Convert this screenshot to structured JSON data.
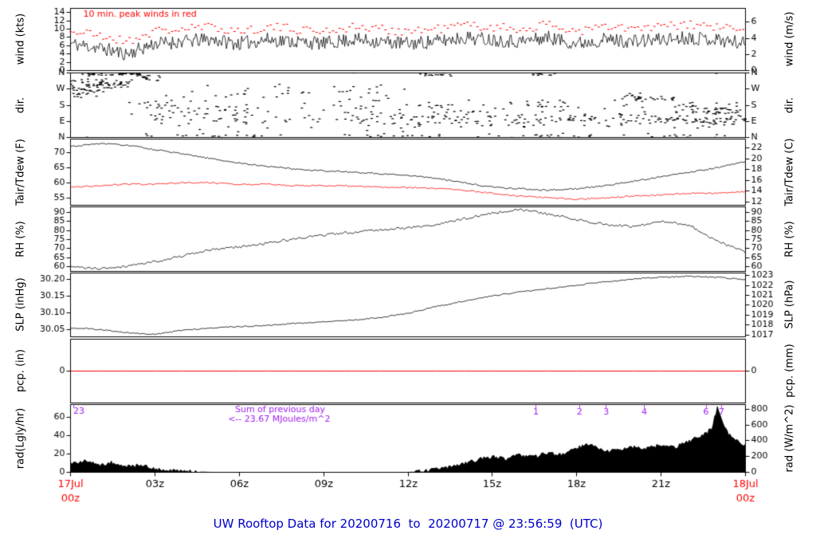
{
  "title": "UW Rooftop Data for 20200716  to  20200717 @ 23:56:59  (UTC)",
  "colors": {
    "title": "#0000cd",
    "frame": "#000000",
    "red": "#ff0000",
    "purple": "#a020f0"
  },
  "chart_data": {
    "type": "line",
    "x_axis": {
      "range_hours": [
        0,
        24
      ],
      "ticks": [
        {
          "h": 0,
          "lines": [
            "17Jul",
            "00z"
          ],
          "color": "#ff0000"
        },
        {
          "h": 3,
          "lines": [
            "03z"
          ],
          "color": "#000000"
        },
        {
          "h": 6,
          "lines": [
            "06z"
          ],
          "color": "#000000"
        },
        {
          "h": 9,
          "lines": [
            "09z"
          ],
          "color": "#000000"
        },
        {
          "h": 12,
          "lines": [
            "12z"
          ],
          "color": "#000000"
        },
        {
          "h": 15,
          "lines": [
            "15z"
          ],
          "color": "#000000"
        },
        {
          "h": 18,
          "lines": [
            "18z"
          ],
          "color": "#000000"
        },
        {
          "h": 21,
          "lines": [
            "21z"
          ],
          "color": "#000000"
        },
        {
          "h": 24,
          "lines": [
            "18Jul",
            "00z"
          ],
          "color": "#ff0000"
        }
      ]
    },
    "panels": [
      {
        "id": "wind",
        "label_left": "wind (kts)",
        "label_right": "wind (m/s)",
        "ylim": [
          0,
          15
        ],
        "ticks_left": {
          "values": [
            0,
            2,
            4,
            6,
            8,
            10,
            12,
            14
          ],
          "labels": [
            "0",
            "2",
            "4",
            "6",
            "8",
            "10",
            "12",
            "14"
          ]
        },
        "ticks_right": {
          "values": [
            0,
            3.889,
            7.778,
            11.667
          ],
          "labels": [
            "0",
            "2",
            "4",
            "6"
          ]
        },
        "annotations": [
          {
            "text": "10 min. peak winds in red",
            "color": "#ff0000",
            "h": 0.45,
            "dy": 10,
            "align": "left"
          }
        ],
        "series": [
          {
            "name": "10 min peak wind",
            "color": "#ff0000",
            "style": "dots",
            "anchors_v": [
              9.5,
              8.5,
              7,
              9.5,
              10,
              10.5,
              9.5,
              10.5,
              10,
              9.5,
              10.5,
              10,
              9.5,
              10,
              11,
              10.5,
              10,
              11,
              9.5,
              10.5,
              10,
              10.5,
              11,
              10.5,
              9.5
            ],
            "noise": 1.1,
            "seed": 21,
            "step_min": 7
          },
          {
            "name": "10 min avg wind",
            "color": "#000000",
            "style": "line",
            "anchors_v": [
              6.5,
              5.5,
              4,
              6.5,
              7,
              7.5,
              6.5,
              7.5,
              7,
              6.5,
              7.5,
              7,
              6.5,
              7,
              8,
              7.5,
              7,
              8,
              6.5,
              7.5,
              7,
              7.5,
              8,
              7.5,
              6.5
            ],
            "noise": 1.7,
            "seed": 11,
            "step_min": 2.5,
            "clamp_min": 1
          }
        ]
      },
      {
        "id": "dir",
        "label_left": "dir.",
        "label_right": "dir.",
        "ylim": [
          0,
          360
        ],
        "ticks_left": {
          "values": [
            0,
            90,
            180,
            270,
            360
          ],
          "labels": [
            "N",
            "E",
            "S",
            "W",
            "N"
          ]
        },
        "ticks_right": {
          "values": [
            0,
            90,
            180,
            270,
            360
          ],
          "labels": [
            "N",
            "E",
            "S",
            "W",
            "N"
          ]
        },
        "scatter_seed": 77,
        "scatter_segments": [
          {
            "t0": 0,
            "t1": 2.2,
            "center": 300,
            "spread": 45,
            "count": 70
          },
          {
            "t0": 0.2,
            "t1": 2.6,
            "center": 352,
            "spread": 10,
            "count": 40
          },
          {
            "t0": 0,
            "t1": 1.2,
            "center": 245,
            "spread": 25,
            "count": 20
          },
          {
            "t0": 2,
            "t1": 4,
            "center": 180,
            "spread": 60,
            "count": 18
          },
          {
            "t0": 2.3,
            "t1": 3.2,
            "center": 330,
            "spread": 25,
            "count": 14
          },
          {
            "t0": 3,
            "t1": 12,
            "center": 120,
            "spread": 95,
            "count": 120
          },
          {
            "t0": 4,
            "t1": 12,
            "center": 250,
            "spread": 60,
            "count": 40
          },
          {
            "t0": 2,
            "t1": 24,
            "center": 10,
            "spread": 15,
            "count": 70
          },
          {
            "t0": 12,
            "t1": 24,
            "center": 100,
            "spread": 55,
            "count": 200
          },
          {
            "t0": 12,
            "t1": 24,
            "center": 180,
            "spread": 40,
            "count": 60
          },
          {
            "t0": 12.4,
            "t1": 13.6,
            "center": 350,
            "spread": 10,
            "count": 16
          },
          {
            "t0": 16.3,
            "t1": 17.3,
            "center": 352,
            "spread": 8,
            "count": 10
          },
          {
            "t0": 19.5,
            "t1": 21.5,
            "center": 225,
            "spread": 30,
            "count": 30
          },
          {
            "t0": 21.5,
            "t1": 24,
            "center": 140,
            "spread": 50,
            "count": 40
          }
        ]
      },
      {
        "id": "temperature",
        "label_left": "Tair/Tdew (F)",
        "label_right": "Tair/Tdew (C)",
        "ylim": [
          52.5,
          74.5
        ],
        "ticks_left": {
          "values": [
            55,
            60,
            65,
            70
          ],
          "labels": [
            "55",
            "60",
            "65",
            "70"
          ]
        },
        "ticks_right": {
          "values": [
            53.6,
            57.2,
            60.8,
            64.4,
            68,
            71.6
          ],
          "labels": [
            "12",
            "14",
            "16",
            "18",
            "20",
            "22"
          ]
        },
        "series": [
          {
            "name": "Tair",
            "color": "#000000",
            "style": "line",
            "anchors_v": [
              72,
              73,
              72.5,
              71,
              69.5,
              68,
              66.5,
              65.5,
              64.5,
              64,
              63.5,
              63,
              62.5,
              61.5,
              60,
              58.5,
              58,
              57.5,
              58,
              59,
              60.5,
              62,
              63.5,
              65,
              67
            ],
            "noise": 0.25,
            "seed": 31,
            "step_min": 4
          },
          {
            "name": "Tdew",
            "color": "#ff0000",
            "style": "line",
            "anchors_v": [
              58.5,
              59,
              59.5,
              59.5,
              60,
              60,
              59.5,
              59.5,
              59,
              59,
              59,
              58.5,
              58.5,
              58,
              57.5,
              56.5,
              55.5,
              55,
              54.5,
              55,
              55.5,
              56,
              56.5,
              56.5,
              57
            ],
            "noise": 0.25,
            "seed": 32,
            "step_min": 4
          }
        ]
      },
      {
        "id": "rh",
        "label_left": "RH (%)",
        "label_right": "RH (%)",
        "ylim": [
          57.5,
          93
        ],
        "ticks_left": {
          "values": [
            60,
            65,
            70,
            75,
            80,
            85,
            90
          ],
          "labels": [
            "60",
            "65",
            "70",
            "75",
            "80",
            "85",
            "90"
          ]
        },
        "ticks_right": {
          "values": [
            60,
            65,
            70,
            75,
            80,
            85,
            90
          ],
          "labels": [
            "60",
            "65",
            "70",
            "75",
            "80",
            "85",
            "90"
          ]
        },
        "series": [
          {
            "name": "RH",
            "color": "#000000",
            "style": "line",
            "anchors_v": [
              60,
              59,
              60.5,
              63,
              66,
              69.5,
              71,
              73,
              75.5,
              77.5,
              79,
              80.5,
              81.5,
              83,
              86.5,
              89.5,
              91.5,
              89,
              86,
              83.5,
              82,
              85,
              83,
              74,
              68
            ],
            "noise": 0.7,
            "seed": 41,
            "step_min": 4
          }
        ]
      },
      {
        "id": "slp",
        "label_left": "SLP (inHg)",
        "label_right": "SLP (hPa)",
        "ylim": [
          30.028,
          30.218
        ],
        "ticks_left": {
          "values": [
            30.05,
            30.1,
            30.15,
            30.2
          ],
          "labels": [
            "30.05",
            "30.10",
            "30.15",
            "30.20"
          ]
        },
        "ticks_right": {
          "values": [
            30.0334,
            30.0629,
            30.0925,
            30.122,
            30.1515,
            30.1811,
            30.2106
          ],
          "labels": [
            "1017",
            "1018",
            "1019",
            "1020",
            "1021",
            "1022",
            "1023"
          ]
        },
        "series": [
          {
            "name": "SLP",
            "color": "#000000",
            "style": "line",
            "anchors_v": [
              30.055,
              30.05,
              30.04,
              30.035,
              30.048,
              30.055,
              30.058,
              30.062,
              30.068,
              30.072,
              30.078,
              30.085,
              30.098,
              30.118,
              30.135,
              30.15,
              30.162,
              30.172,
              30.182,
              30.192,
              30.2,
              30.206,
              30.208,
              30.205,
              30.198
            ],
            "noise": 0.0018,
            "seed": 51,
            "step_min": 4
          }
        ]
      },
      {
        "id": "pcp",
        "label_left": "pcp. (in)",
        "label_right": "pcp. (mm)",
        "ylim": [
          -0.5,
          0.5
        ],
        "ticks_left": {
          "values": [
            0
          ],
          "labels": [
            "0"
          ]
        },
        "ticks_right": {
          "values": [
            0
          ],
          "labels": [
            "0"
          ]
        },
        "series": [
          {
            "name": "precip",
            "color": "#ff0000",
            "style": "line",
            "anchors_v": [
              0,
              0
            ],
            "noise": 0,
            "seed": 61,
            "step_min": 60,
            "lw": 1
          }
        ]
      },
      {
        "id": "rad",
        "label_left": "rad(Lgly/hr)",
        "label_right": "rad (W/m^2)",
        "ylim": [
          0,
          74
        ],
        "ticks_left": {
          "values": [
            0,
            20,
            40,
            60
          ],
          "labels": [
            "0",
            "20",
            "40",
            "60"
          ]
        },
        "ticks_right": {
          "values": [
            0,
            17.2,
            34.39,
            51.59,
            68.79
          ],
          "labels": [
            "0",
            "200",
            "400",
            "600",
            "800"
          ]
        },
        "annotations": [
          {
            "text": "23",
            "color": "#a020f0",
            "h": 0.1,
            "dy": 11,
            "align": "left",
            "tick": true
          },
          {
            "text": "Sum of previous day",
            "color": "#a020f0",
            "h": 5.85,
            "dy": 9,
            "align": "left"
          },
          {
            "text": "<-- 23.67 MJoules/m^2",
            "color": "#a020f0",
            "h": 5.6,
            "dy": 21,
            "align": "left"
          },
          {
            "text": "1",
            "color": "#a020f0",
            "h": 16.55,
            "dy": 12,
            "align": "center",
            "tick": true
          },
          {
            "text": "2",
            "color": "#a020f0",
            "h": 18.1,
            "dy": 12,
            "align": "center",
            "tick": true
          },
          {
            "text": "3",
            "color": "#a020f0",
            "h": 19.05,
            "dy": 12,
            "align": "center",
            "tick": true
          },
          {
            "text": "4",
            "color": "#a020f0",
            "h": 20.4,
            "dy": 12,
            "align": "center",
            "tick": true
          },
          {
            "text": "6",
            "color": "#a020f0",
            "h": 22.6,
            "dy": 12,
            "align": "center",
            "tick": true
          },
          {
            "text": "7",
            "color": "#a020f0",
            "h": 23.15,
            "dy": 12,
            "align": "center",
            "tick": true
          }
        ],
        "series": [
          {
            "name": "solar radiation",
            "color": "#000000",
            "style": "area",
            "anchors_h": [
              0,
              0.5,
              1,
              1.5,
              2,
              2.5,
              3,
              3.5,
              4,
              4.5,
              5,
              12,
              12.5,
              13,
              13.5,
              14,
              14.5,
              15,
              15.5,
              16,
              16.5,
              17,
              17.5,
              18,
              18.5,
              19,
              19.5,
              20,
              20.5,
              21,
              21.5,
              22,
              22.5,
              22.8,
              23,
              23.2,
              23.5,
              24
            ],
            "anchors_v": [
              10,
              12,
              8,
              11,
              6,
              8,
              4,
              2,
              1,
              0.5,
              0,
              0,
              1,
              3,
              6,
              10,
              14,
              17,
              15,
              19,
              17,
              21,
              19,
              26,
              32,
              22,
              25,
              28,
              26,
              30,
              27,
              34,
              40,
              48,
              70,
              52,
              38,
              30
            ],
            "noise": 2.2,
            "noise_floor": 0.4,
            "seed": 71,
            "step_min": 3
          }
        ]
      }
    ]
  }
}
